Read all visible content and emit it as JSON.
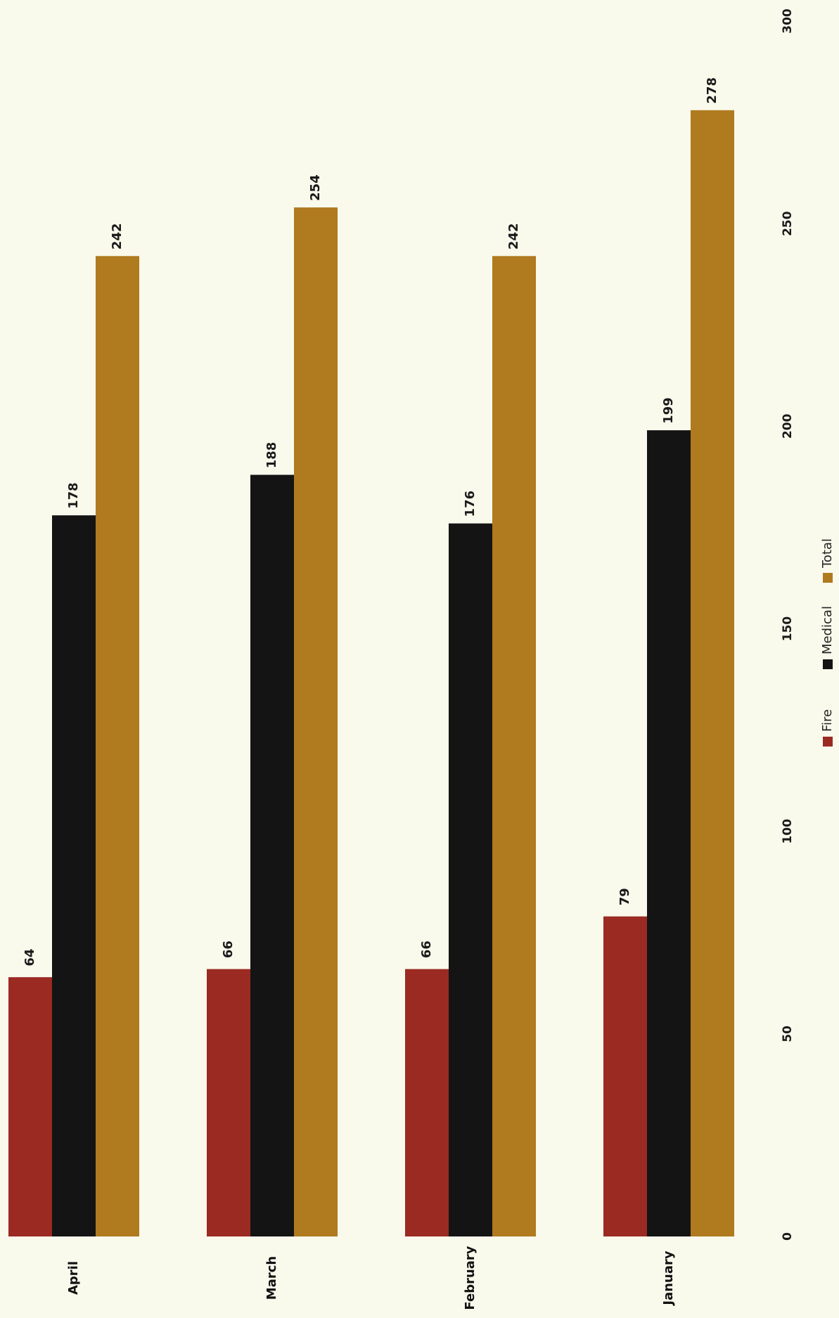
{
  "chart_data": {
    "type": "bar",
    "orientation": "horizontal",
    "rotation": "page rotated 90 degrees counter-clockwise",
    "title": "",
    "xlabel": "",
    "ylabel": "",
    "categories": [
      "April",
      "March",
      "February",
      "January"
    ],
    "series": [
      {
        "name": "Fire",
        "color": "#9b2a22",
        "values": [
          64,
          66,
          66,
          79
        ]
      },
      {
        "name": "Medical",
        "color": "#141414",
        "values": [
          178,
          188,
          176,
          199
        ]
      },
      {
        "name": "Total",
        "color": "#b07a1e",
        "values": [
          242,
          254,
          242,
          278
        ]
      }
    ],
    "value_axis": {
      "min": 0,
      "max": 300,
      "ticks": [
        0,
        50,
        100,
        150,
        200,
        250,
        300
      ]
    },
    "grid": false,
    "legend": "right"
  }
}
